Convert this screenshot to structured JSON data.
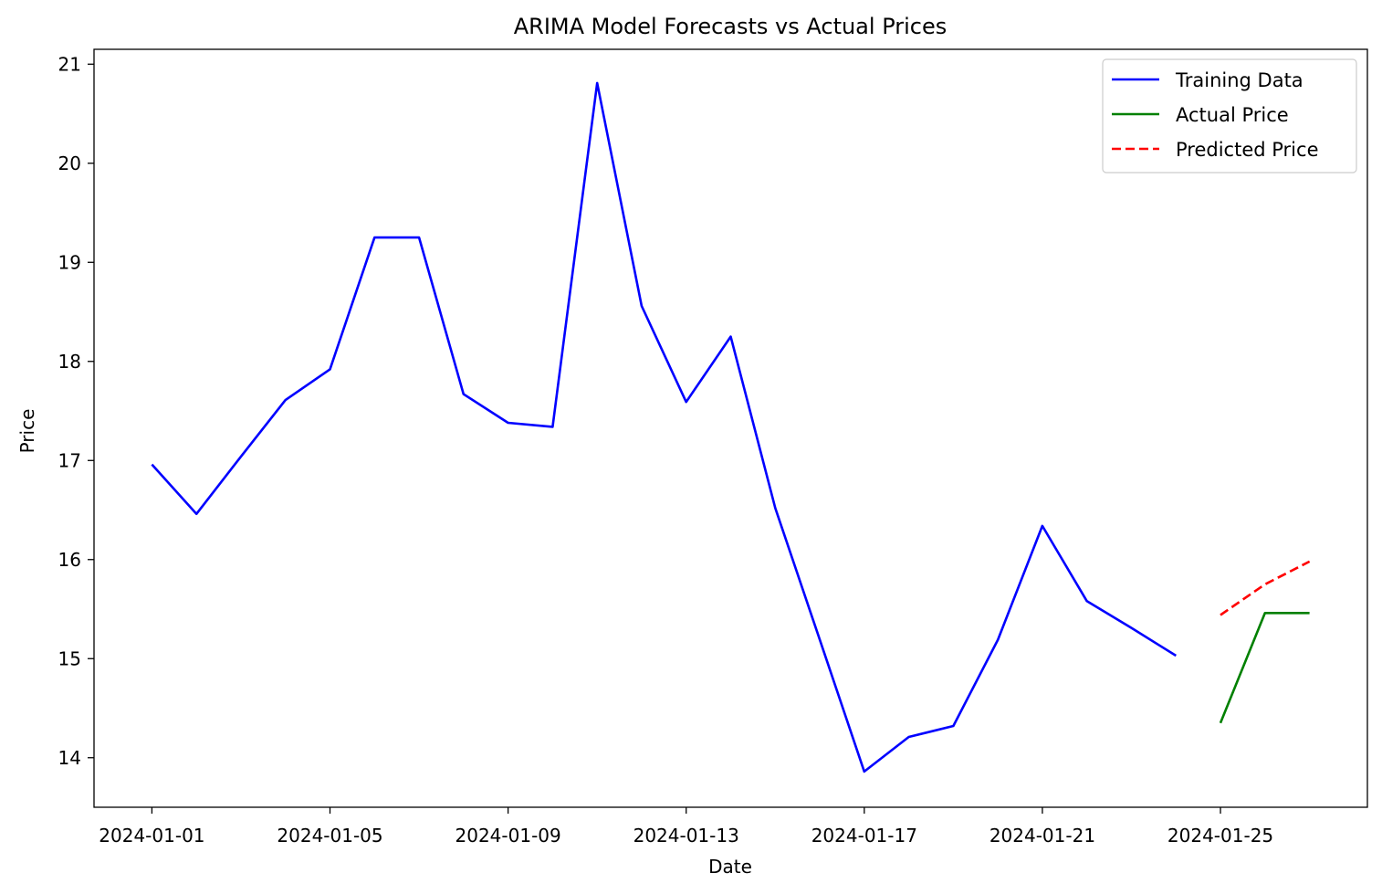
{
  "chart_data": {
    "type": "line",
    "title": "ARIMA Model Forecasts vs Actual Prices",
    "xlabel": "Date",
    "ylabel": "Price",
    "ylim": [
      13.5,
      21.15
    ],
    "xlim": [
      "2023-12-30T16:48",
      "2024-01-28T07:12"
    ],
    "x_ticks": [
      "2024-01-01",
      "2024-01-05",
      "2024-01-09",
      "2024-01-13",
      "2024-01-17",
      "2024-01-21",
      "2024-01-25"
    ],
    "y_ticks": [
      14,
      15,
      16,
      17,
      18,
      19,
      20,
      21
    ],
    "grid": false,
    "legend": "upper right",
    "series": [
      {
        "name": "Training Data",
        "color": "#0000ff",
        "style": "solid",
        "x": [
          "2024-01-01",
          "2024-01-02",
          "2024-01-03",
          "2024-01-04",
          "2024-01-05",
          "2024-01-06",
          "2024-01-07",
          "2024-01-08",
          "2024-01-09",
          "2024-01-10",
          "2024-01-11",
          "2024-01-12",
          "2024-01-13",
          "2024-01-14",
          "2024-01-15",
          "2024-01-16",
          "2024-01-17",
          "2024-01-18",
          "2024-01-19",
          "2024-01-20",
          "2024-01-21",
          "2024-01-22",
          "2024-01-23",
          "2024-01-24"
        ],
        "values": [
          16.96,
          16.46,
          17.04,
          17.61,
          17.92,
          19.25,
          19.25,
          17.67,
          17.38,
          17.34,
          20.81,
          18.56,
          17.59,
          18.25,
          16.52,
          15.19,
          13.86,
          14.21,
          14.32,
          15.19,
          16.34,
          15.58,
          15.31,
          15.03
        ]
      },
      {
        "name": "Actual Price",
        "color": "#008000",
        "style": "solid",
        "x": [
          "2024-01-25",
          "2024-01-26",
          "2024-01-27"
        ],
        "values": [
          14.35,
          15.46,
          15.46
        ]
      },
      {
        "name": "Predicted Price",
        "color": "#ff0000",
        "style": "dashed",
        "x": [
          "2024-01-25",
          "2024-01-26",
          "2024-01-27"
        ],
        "values": [
          15.44,
          15.75,
          15.98
        ]
      }
    ]
  }
}
